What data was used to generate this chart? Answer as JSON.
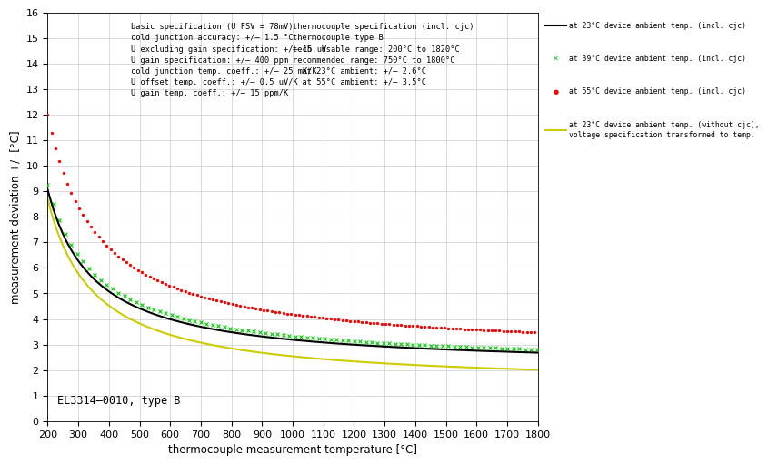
{
  "xlabel": "thermocouple measurement temperature [°C]",
  "ylabel": "measurement deviation +/- [°C]",
  "xlim": [
    200,
    1800
  ],
  "ylim": [
    0,
    16
  ],
  "annotation": "EL3314–0010, type B",
  "text_block_left": "basic specification (U FSV = 78mV)\ncold junction accuracy: +/– 1.5 °C\nU excluding gain specification: +/– 15 uV\nU gain specification: +/– 400 ppm\ncold junction temp. coeff.: +/– 25 mK/K\nU offset temp. coeff.: +/– 0.5 uV/K\nU gain temp. coeff.: +/– 15 ppm/K",
  "text_block_middle": "thermocouple specification (incl. cjc)\nthermocouple type B\ntech. usable range: 200°C to 1820°C\nrecommended range: 750°C to 1800°C\n  at 23°C ambient: +/– 2.6°C\n  at 55°C ambient: +/– 3.5°C",
  "legend_23_cjc": "at 23°C device ambient temp. (incl. cjc)",
  "legend_39_cjc": "at 39°C device ambient temp. (incl. cjc)",
  "legend_55_cjc": "at 55°C device ambient temp. (incl. cjc)",
  "legend_23_nocjc_line1": "at 23°C device ambient temp. (without cjc),",
  "legend_23_nocjc_line2": "voltage specification transformed to temp.",
  "background_color": "#ffffff",
  "grid_color": "#cccccc",
  "curve_23_color": "#000000",
  "curve_39_color": "#00cc00",
  "curve_55_color": "#ff0000",
  "curve_nocjc_color": "#cccc00",
  "curve_black": {
    "a": 1050,
    "b": 2.08,
    "T0": 50
  },
  "curve_green": {
    "a": 1100,
    "b": 2.18,
    "T0": 45
  },
  "curve_red": {
    "a": 1500,
    "b": 2.62,
    "T0": 40
  },
  "curve_yellow": {
    "a": 1100,
    "b": 1.38,
    "T0": 50
  },
  "n_points": 500,
  "xticks": [
    200,
    300,
    400,
    500,
    600,
    700,
    800,
    900,
    1000,
    1100,
    1200,
    1300,
    1400,
    1500,
    1600,
    1700,
    1800
  ],
  "yticks": [
    0,
    1,
    2,
    3,
    4,
    5,
    6,
    7,
    8,
    9,
    10,
    11,
    12,
    13,
    14,
    15,
    16
  ]
}
